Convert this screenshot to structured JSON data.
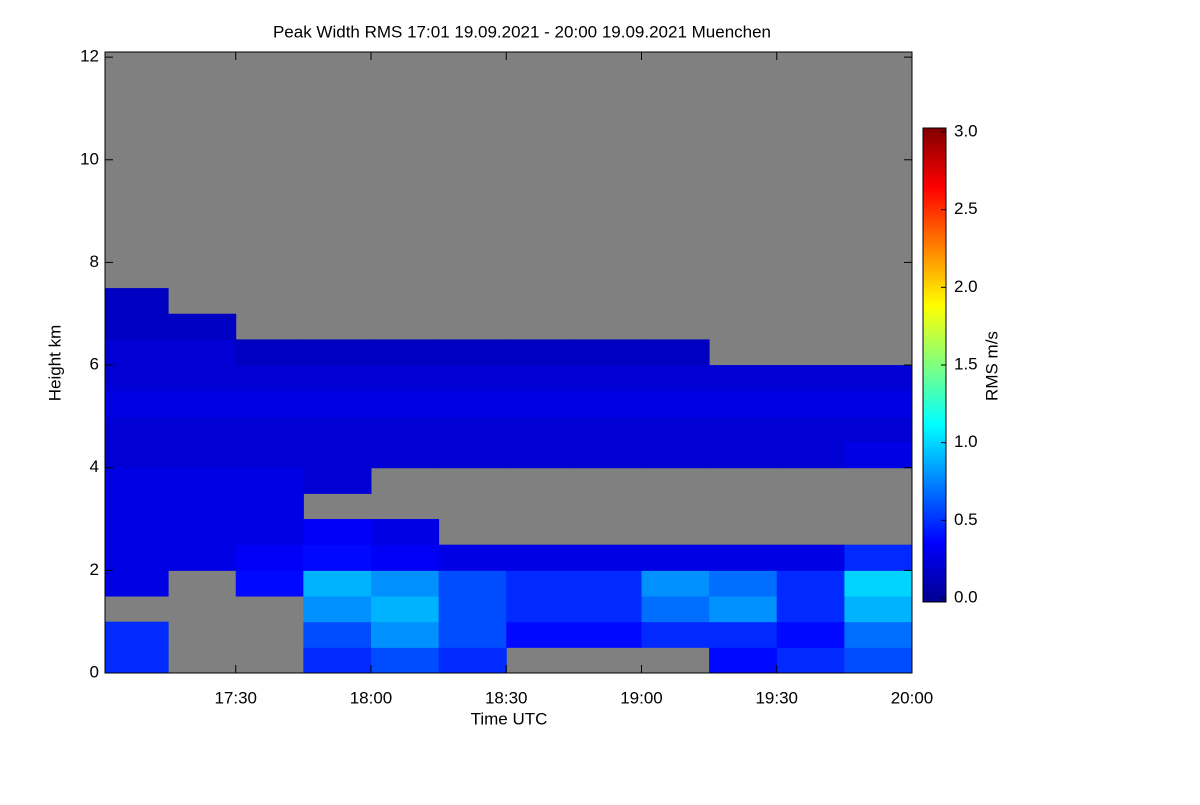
{
  "chart_data": {
    "type": "heatmap",
    "title": "Peak Width RMS   17:01 19.09.2021 - 20:00 19.09.2021 Muenchen",
    "xlabel": "Time UTC",
    "ylabel": "Height km",
    "colorbar_label": "RMS m/s",
    "x_edges": [
      1021,
      1035,
      1050,
      1065,
      1080,
      1095,
      1110,
      1125,
      1140,
      1155,
      1170,
      1185,
      1200
    ],
    "y_edges": [
      0,
      0.5,
      1,
      1.5,
      2,
      2.5,
      3,
      3.5,
      4,
      4.5,
      5,
      5.5,
      6,
      6.5,
      7,
      7.5,
      8
    ],
    "z": [
      [
        0.5,
        null,
        null,
        0.5,
        0.6,
        0.5,
        null,
        null,
        null,
        0.4,
        0.5,
        0.6
      ],
      [
        0.5,
        null,
        null,
        0.6,
        0.8,
        0.6,
        0.4,
        0.4,
        0.5,
        0.5,
        0.4,
        0.7
      ],
      [
        null,
        null,
        null,
        0.8,
        0.9,
        0.6,
        0.5,
        0.5,
        0.7,
        0.8,
        0.5,
        0.9
      ],
      [
        0.3,
        null,
        0.4,
        0.9,
        0.8,
        0.6,
        0.5,
        0.5,
        0.8,
        0.7,
        0.5,
        1.0
      ],
      [
        0.3,
        0.3,
        0.35,
        0.4,
        0.35,
        0.3,
        0.3,
        0.3,
        0.3,
        0.3,
        0.3,
        0.5
      ],
      [
        0.3,
        0.3,
        0.3,
        0.35,
        0.3,
        null,
        null,
        null,
        null,
        null,
        null,
        null
      ],
      [
        0.3,
        0.3,
        0.3,
        null,
        null,
        null,
        null,
        null,
        null,
        null,
        null,
        null
      ],
      [
        0.3,
        0.3,
        0.3,
        0.25,
        null,
        null,
        null,
        null,
        null,
        null,
        null,
        null
      ],
      [
        0.25,
        0.25,
        0.25,
        0.25,
        0.25,
        0.25,
        0.25,
        0.25,
        0.25,
        0.25,
        0.25,
        0.3
      ],
      [
        0.25,
        0.25,
        0.25,
        0.25,
        0.25,
        0.25,
        0.25,
        0.25,
        0.25,
        0.25,
        0.25,
        0.25
      ],
      [
        0.3,
        0.3,
        0.3,
        0.3,
        0.3,
        0.3,
        0.3,
        0.3,
        0.3,
        0.3,
        0.3,
        0.3
      ],
      [
        0.25,
        0.25,
        0.25,
        0.25,
        0.25,
        0.25,
        0.25,
        0.25,
        0.25,
        0.25,
        0.25,
        0.25
      ],
      [
        0.25,
        0.25,
        0.2,
        0.2,
        0.2,
        0.2,
        0.2,
        0.2,
        0.2,
        null,
        null,
        null
      ],
      [
        0.2,
        0.2,
        null,
        null,
        null,
        null,
        null,
        null,
        null,
        null,
        null,
        null
      ],
      [
        0.2,
        null,
        null,
        null,
        null,
        null,
        null,
        null,
        null,
        null,
        null,
        null
      ],
      [
        null,
        null,
        null,
        null,
        null,
        null,
        null,
        null,
        null,
        null,
        null,
        null
      ]
    ],
    "xlim": [
      1021,
      1200
    ],
    "xticks": [
      {
        "value": 1050,
        "label": "17:30"
      },
      {
        "value": 1080,
        "label": "18:00"
      },
      {
        "value": 1110,
        "label": "18:30"
      },
      {
        "value": 1140,
        "label": "19:00"
      },
      {
        "value": 1170,
        "label": "19:30"
      },
      {
        "value": 1200,
        "label": "20:00"
      }
    ],
    "ylim": [
      0,
      12.1
    ],
    "yticks": [
      0,
      2,
      4,
      6,
      8,
      10,
      12
    ],
    "clim": [
      0,
      3
    ],
    "cticks": [
      {
        "value": 0,
        "label": "0.0"
      },
      {
        "value": 0.5,
        "label": "0.5"
      },
      {
        "value": 1,
        "label": "1.0"
      },
      {
        "value": 1.5,
        "label": "1.5"
      },
      {
        "value": 2,
        "label": "2.0"
      },
      {
        "value": 2.5,
        "label": "2.5"
      },
      {
        "value": 3,
        "label": "3.0"
      }
    ],
    "colormap": "jet",
    "missing_color": "#808080"
  }
}
